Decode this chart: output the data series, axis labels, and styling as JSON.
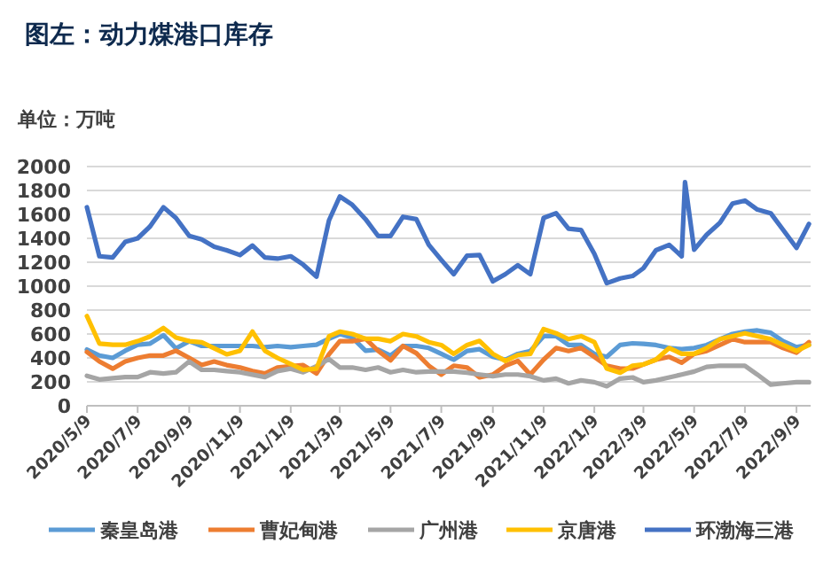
{
  "chart_data": {
    "type": "line",
    "title": "图左：动力煤港口库存",
    "ylabel": "单位：万吨",
    "x": [
      "2020-05-09",
      "2020-05-24",
      "2020-06-09",
      "2020-06-24",
      "2020-07-09",
      "2020-07-24",
      "2020-08-09",
      "2020-08-24",
      "2020-09-09",
      "2020-09-24",
      "2020-10-09",
      "2020-10-24",
      "2020-11-09",
      "2020-11-24",
      "2020-12-09",
      "2020-12-24",
      "2021-01-09",
      "2021-01-24",
      "2021-02-09",
      "2021-02-24",
      "2021-03-09",
      "2021-03-24",
      "2021-04-09",
      "2021-04-24",
      "2021-05-09",
      "2021-05-24",
      "2021-06-09",
      "2021-06-24",
      "2021-07-09",
      "2021-07-24",
      "2021-08-09",
      "2021-08-24",
      "2021-09-09",
      "2021-09-24",
      "2021-10-09",
      "2021-10-24",
      "2021-11-09",
      "2021-11-24",
      "2021-12-09",
      "2021-12-24",
      "2022-01-09",
      "2022-01-24",
      "2022-02-09",
      "2022-02-24",
      "2022-03-09",
      "2022-03-24",
      "2022-04-09",
      "2022-04-24",
      "2022-05-09",
      "2022-05-24",
      "2022-06-09",
      "2022-06-24",
      "2022-07-09",
      "2022-07-24",
      "2022-08-09",
      "2022-08-24",
      "2022-09-09",
      "2022-09-24"
    ],
    "series": [
      {
        "name": "秦皇岛港",
        "color": "#5b9bd5",
        "values": [
          470,
          420,
          400,
          460,
          510,
          520,
          590,
          480,
          540,
          500,
          500,
          500,
          500,
          500,
          490,
          500,
          490,
          500,
          510,
          560,
          600,
          570,
          460,
          470,
          420,
          500,
          500,
          483,
          434,
          385,
          458,
          473,
          409,
          385,
          434,
          458,
          582,
          582,
          508,
          508,
          434,
          409,
          508,
          522,
          518,
          508,
          483,
          473,
          483,
          508,
          557,
          600,
          620,
          630,
          610,
          540,
          490,
          510
        ]
      },
      {
        "name": "曹妃甸港",
        "color": "#ed7d31",
        "values": [
          450,
          370,
          310,
          370,
          400,
          420,
          420,
          460,
          400,
          340,
          370,
          340,
          320,
          290,
          270,
          320,
          330,
          340,
          270,
          430,
          540,
          540,
          560,
          460,
          380,
          500,
          440,
          335,
          261,
          335,
          320,
          237,
          261,
          335,
          375,
          261,
          385,
          483,
          458,
          483,
          409,
          335,
          311,
          311,
          345,
          385,
          409,
          360,
          434,
          458,
          508,
          557,
          532,
          532,
          532,
          483,
          444,
          532
        ]
      },
      {
        "name": "广州港",
        "color": "#a5a5a5",
        "values": [
          250,
          220,
          230,
          240,
          240,
          280,
          270,
          280,
          370,
          300,
          300,
          290,
          280,
          260,
          240,
          290,
          310,
          280,
          330,
          390,
          320,
          320,
          300,
          320,
          280,
          300,
          280,
          286,
          286,
          286,
          276,
          261,
          247,
          261,
          261,
          247,
          212,
          227,
          187,
          212,
          197,
          163,
          227,
          237,
          197,
          212,
          237,
          261,
          286,
          325,
          335,
          335,
          335,
          261,
          177,
          187,
          197,
          197
        ]
      },
      {
        "name": "京唐港",
        "color": "#ffc000",
        "values": [
          750,
          520,
          510,
          510,
          540,
          580,
          650,
          570,
          540,
          530,
          480,
          430,
          460,
          620,
          460,
          400,
          350,
          300,
          310,
          580,
          620,
          600,
          560,
          560,
          540,
          600,
          580,
          532,
          508,
          434,
          508,
          542,
          434,
          375,
          424,
          434,
          641,
          606,
          557,
          582,
          532,
          311,
          276,
          335,
          345,
          385,
          483,
          434,
          434,
          483,
          557,
          582,
          606,
          582,
          557,
          508,
          458,
          508
        ]
      },
      {
        "name": "环渤海三港",
        "color": "#4472c4",
        "x": [
          "2020-05-09",
          "2020-05-24",
          "2020-06-09",
          "2020-06-24",
          "2020-07-09",
          "2020-07-24",
          "2020-08-09",
          "2020-08-24",
          "2020-09-09",
          "2020-09-24",
          "2020-10-09",
          "2020-10-24",
          "2020-11-09",
          "2020-11-24",
          "2020-12-09",
          "2020-12-24",
          "2021-01-09",
          "2021-01-24",
          "2021-02-09",
          "2021-02-24",
          "2021-03-09",
          "2021-03-24",
          "2021-04-09",
          "2021-04-24",
          "2021-05-09",
          "2021-05-24",
          "2021-06-09",
          "2021-06-24",
          "2021-07-09",
          "2021-07-24",
          "2021-08-09",
          "2021-08-24",
          "2021-09-09",
          "2021-09-24",
          "2021-10-09",
          "2021-10-24",
          "2021-11-09",
          "2021-11-24",
          "2021-12-09",
          "2021-12-24",
          "2022-01-09",
          "2022-01-24",
          "2022-02-09",
          "2022-02-24",
          "2022-03-09",
          "2022-03-24",
          "2022-04-09",
          "2022-04-24",
          "2022-04-28",
          "2022-05-09",
          "2022-05-24",
          "2022-06-09",
          "2022-06-24",
          "2022-07-09",
          "2022-07-24",
          "2022-08-09",
          "2022-08-24",
          "2022-09-09",
          "2022-09-24"
        ],
        "values": [
          1660,
          1250,
          1240,
          1370,
          1400,
          1500,
          1660,
          1570,
          1420,
          1390,
          1330,
          1300,
          1260,
          1340,
          1240,
          1230,
          1250,
          1180,
          1080,
          1550,
          1750,
          1680,
          1560,
          1420,
          1420,
          1580,
          1560,
          1345,
          1220,
          1100,
          1255,
          1260,
          1040,
          1100,
          1175,
          1100,
          1570,
          1610,
          1480,
          1470,
          1270,
          1025,
          1065,
          1085,
          1150,
          1300,
          1345,
          1250,
          1870,
          1305,
          1430,
          1530,
          1690,
          1715,
          1640,
          1610,
          1470,
          1320,
          1520
        ]
      }
    ],
    "xlim": [
      "2020-05-09",
      "2022-09-26"
    ],
    "xticks": [
      {
        "value": "2020-05-09",
        "label": "2020/5/9"
      },
      {
        "value": "2020-07-09",
        "label": "2020/7/9"
      },
      {
        "value": "2020-09-09",
        "label": "2020/9/9"
      },
      {
        "value": "2020-11-09",
        "label": "2020/11/9"
      },
      {
        "value": "2021-01-09",
        "label": "2021/1/9"
      },
      {
        "value": "2021-03-09",
        "label": "2021/3/9"
      },
      {
        "value": "2021-05-09",
        "label": "2021/5/9"
      },
      {
        "value": "2021-07-09",
        "label": "2021/7/9"
      },
      {
        "value": "2021-09-09",
        "label": "2021/9/9"
      },
      {
        "value": "2021-11-09",
        "label": "2021/11/9"
      },
      {
        "value": "2022-01-09",
        "label": "2022/1/9"
      },
      {
        "value": "2022-03-09",
        "label": "2022/3/9"
      },
      {
        "value": "2022-05-09",
        "label": "2022/5/9"
      },
      {
        "value": "2022-07-09",
        "label": "2022/7/9"
      },
      {
        "value": "2022-09-09",
        "label": "2022/9/9"
      }
    ],
    "ylim": [
      0,
      2000
    ],
    "yticks": [
      0,
      200,
      400,
      600,
      800,
      1000,
      1200,
      1400,
      1600,
      1800,
      2000
    ],
    "grid": "y",
    "legend": "bottom",
    "line_style": "solid",
    "marker": "none"
  }
}
